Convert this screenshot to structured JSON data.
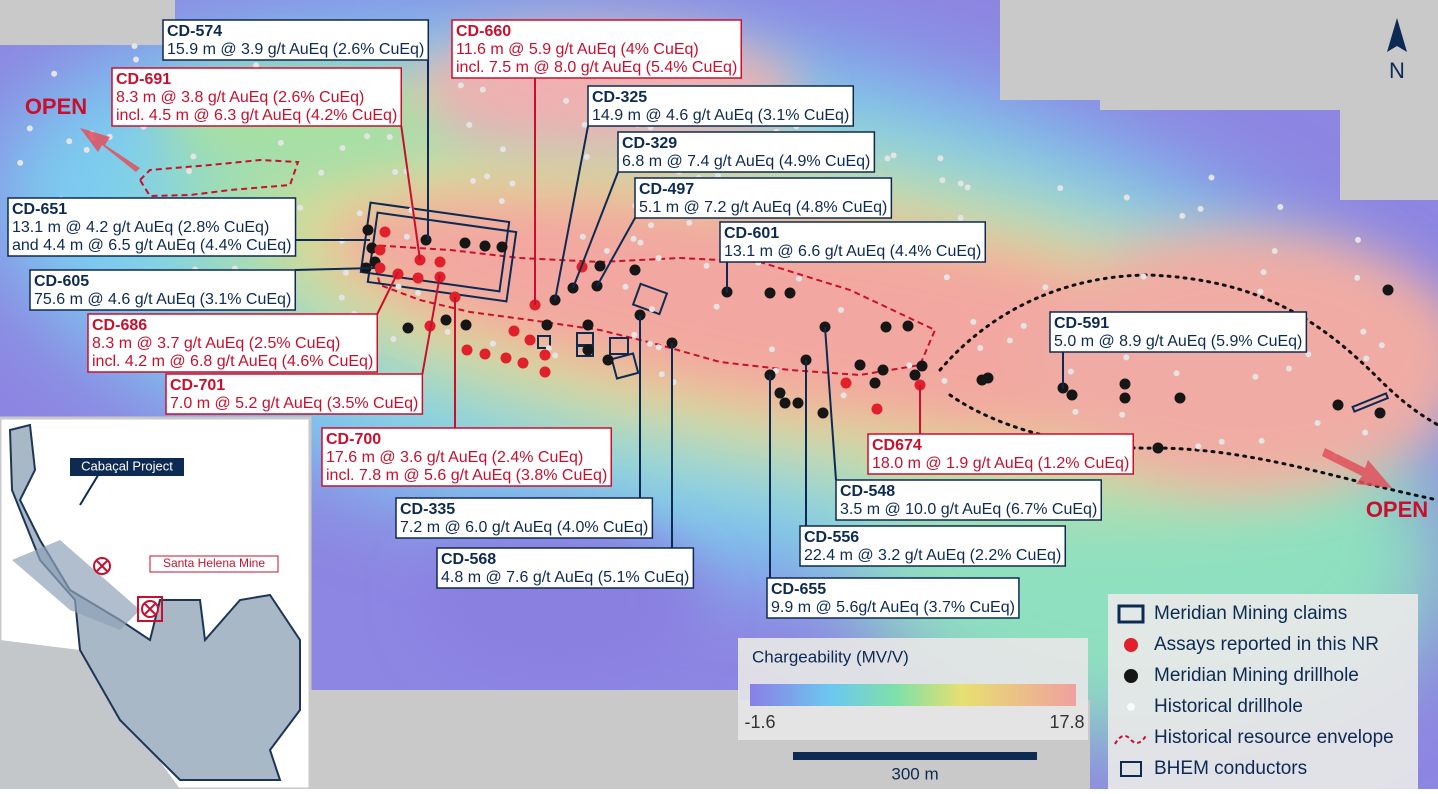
{
  "map": {
    "north": "N",
    "open_labels": [
      "OPEN",
      "OPEN"
    ],
    "callouts": [
      {
        "id": "CD-574",
        "color": "#0d2a52",
        "lines": [
          "15.9 m @ 3.9 g/t AuEq (2.6% CuEq)"
        ]
      },
      {
        "id": "CD-660",
        "color": "#c8102e",
        "lines": [
          "11.6 m @ 5.9 g/t AuEq (4% CuEq)",
          "incl. 7.5 m @ 8.0 g/t AuEq (5.4% CuEq)"
        ]
      },
      {
        "id": "CD-691",
        "color": "#c8102e",
        "lines": [
          "8.3 m @ 3.8 g/t AuEq (2.6% CuEq)",
          "incl. 4.5 m @ 6.3 g/t AuEq (4.2% CuEq)"
        ]
      },
      {
        "id": "CD-325",
        "color": "#0d2a52",
        "lines": [
          "14.9 m @ 4.6 g/t AuEq (3.1% CuEq)"
        ]
      },
      {
        "id": "CD-329",
        "color": "#0d2a52",
        "lines": [
          "6.8 m @ 7.4 g/t AuEq (4.9% CuEq)"
        ]
      },
      {
        "id": "CD-497",
        "color": "#0d2a52",
        "lines": [
          "5.1 m @ 7.2 g/t AuEq (4.8% CuEq)"
        ]
      },
      {
        "id": "CD-651",
        "color": "#0d2a52",
        "lines": [
          "13.1 m @ 4.2 g/t AuEq (2.8% CuEq)",
          "and 4.4 m @ 6.5 g/t AuEq (4.4% CuEq)"
        ]
      },
      {
        "id": "CD-601",
        "color": "#0d2a52",
        "lines": [
          "13.1 m @ 6.6 g/t AuEq (4.4% CuEq)"
        ]
      },
      {
        "id": "CD-605",
        "color": "#0d2a52",
        "lines": [
          "75.6 m @ 4.6 g/t AuEq (3.1% CuEq)"
        ]
      },
      {
        "id": "CD-591",
        "color": "#0d2a52",
        "lines": [
          "5.0 m @ 8.9 g/t AuEq (5.9% CuEq)"
        ]
      },
      {
        "id": "CD-686",
        "color": "#c8102e",
        "lines": [
          "8.3 m @ 3.7 g/t AuEq (2.5% CuEq)",
          "incl. 4.2 m @ 6.8 g/t AuEq (4.6% CuEq)"
        ]
      },
      {
        "id": "CD-701",
        "color": "#c8102e",
        "lines": [
          "7.0 m @ 5.2 g/t AuEq (3.5% CuEq)"
        ]
      },
      {
        "id": "CD-700",
        "color": "#c8102e",
        "lines": [
          "17.6 m @ 3.6 g/t AuEq (2.4% CuEq)",
          "incl. 7.8 m @ 5.6 g/t AuEq (3.8% CuEq)"
        ]
      },
      {
        "id": "CD674",
        "color": "#c8102e",
        "lines": [
          "18.0 m @ 1.9 g/t AuEq (1.2% CuEq)"
        ]
      },
      {
        "id": "CD-548",
        "color": "#0d2a52",
        "lines": [
          "3.5 m @ 10.0 g/t AuEq (6.7% CuEq)"
        ]
      },
      {
        "id": "CD-335",
        "color": "#0d2a52",
        "lines": [
          "7.2 m @ 6.0 g/t AuEq (4.0% CuEq)"
        ]
      },
      {
        "id": "CD-556",
        "color": "#0d2a52",
        "lines": [
          "22.4 m @ 3.2 g/t AuEq (2.2% CuEq)"
        ]
      },
      {
        "id": "CD-568",
        "color": "#0d2a52",
        "lines": [
          "4.8 m @ 7.6 g/t AuEq (5.1% CuEq)"
        ]
      },
      {
        "id": "CD-655",
        "color": "#0d2a52",
        "lines": [
          "9.9 m @ 5.6g/t AuEq (3.7% CuEq)"
        ]
      }
    ],
    "legend": [
      "Meridian Mining claims",
      "Assays reported in this NR",
      "Meridian Mining drillhole",
      "Historical drillhole",
      "Historical resource envelope",
      "BHEM conductors"
    ],
    "colorbar": {
      "title": "Chargeability (MV/V)",
      "min": -1.6,
      "max": 17.8
    },
    "scale_bar": "300 m",
    "inset": {
      "project": "Cabaçal Project",
      "mine": "Santa Helena Mine"
    }
  }
}
